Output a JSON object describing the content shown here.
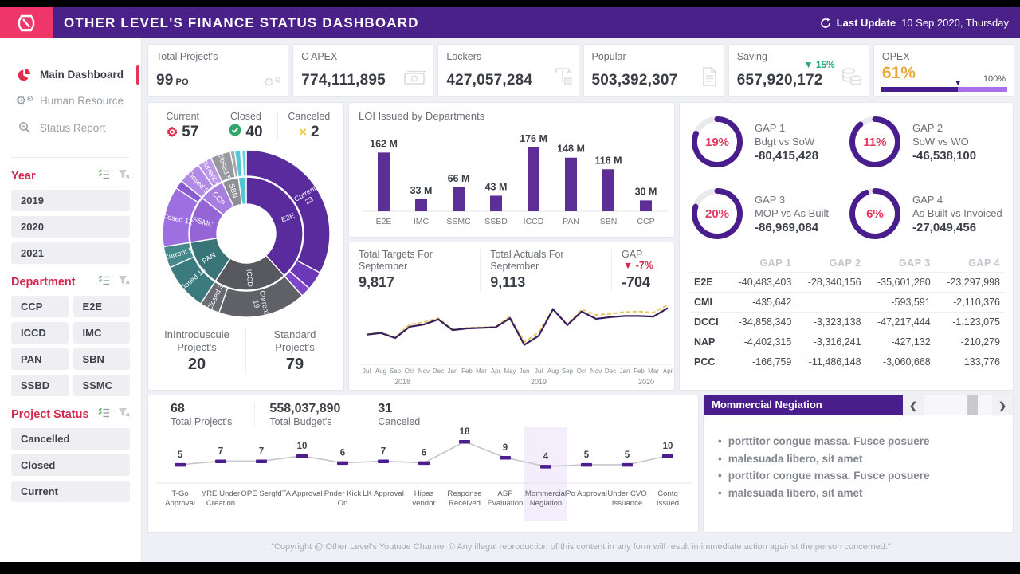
{
  "colors": {
    "header_purple": "#4A2089",
    "brand_pink": "#EE3668",
    "accent_red": "#D6294E",
    "bar_purple": "#5C2E96",
    "ring_purple": "#4A1D8C",
    "pct_red": "#E03A5E",
    "green": "#26A87C",
    "gold": "#E9C75B",
    "opex_orange": "#E9A83C",
    "actuals_purple": "#38205E"
  },
  "topbar": {
    "title": "OTHER LEVEL'S FINANCE STATUS DASHBOARD",
    "last_update_label": "Last Update",
    "last_update_value": "10 Sep 2020, Thursday"
  },
  "sidebar": {
    "nav": [
      {
        "label": "Main Dashboard",
        "icon": "pie-chart-icon",
        "active": true
      },
      {
        "label": "Human Resource",
        "icon": "gears-icon",
        "active": false
      },
      {
        "label": "Status Report",
        "icon": "search-report-icon",
        "active": false
      }
    ],
    "slicers": [
      {
        "title": "Year",
        "layout": "rows",
        "items": [
          "2019",
          "2020",
          "2021"
        ]
      },
      {
        "title": "Department",
        "layout": "grid",
        "items": [
          "CCP",
          "E2E",
          "ICCD",
          "IMC",
          "PAN",
          "SBN",
          "SSBD",
          "SSMC"
        ]
      },
      {
        "title": "Project Status",
        "layout": "rows",
        "items": [
          "Cancelled",
          "Closed",
          "Current"
        ]
      }
    ]
  },
  "kpis": [
    {
      "title": "Total Project's",
      "value": "99",
      "suffix": "PO",
      "icon": "gears-icon"
    },
    {
      "title": "C APEX",
      "value": "774,111,895",
      "icon": "banknote-icon"
    },
    {
      "title": "Lockers",
      "value": "427,057,284",
      "icon": "crane-icon"
    },
    {
      "title": "Popular",
      "value": "503,392,307",
      "icon": "document-icon"
    },
    {
      "title": "Saving",
      "value": "657,920,172",
      "delta": "▼ 15%",
      "icon": "coins-icon"
    },
    {
      "title": "OPEX",
      "type": "progress",
      "value": "61%",
      "pct": 61,
      "max_label": "100%"
    }
  ],
  "status_summary": [
    {
      "label": "Current",
      "value": "57",
      "icon": "gear-icon",
      "color": "#E0314B"
    },
    {
      "label": "Closed",
      "value": "40",
      "icon": "check-circle-icon",
      "color": "#2FA66A"
    },
    {
      "label": "Canceled",
      "value": "2",
      "icon": "x-icon",
      "color": "#EFC93C"
    }
  ],
  "type_totals": [
    {
      "label": "InIntroduscuie Project's",
      "value": "20"
    },
    {
      "label": "Standard Project's",
      "value": "79"
    }
  ],
  "charts": {
    "sunburst": {
      "inner": [
        {
          "lines": [
            "E2E"
          ],
          "start": 0,
          "end": 138,
          "color": "#5A2B9D"
        },
        {
          "lines": [
            "ICCD"
          ],
          "start": 138,
          "end": 213,
          "color": "#57595F"
        },
        {
          "lines": [
            "PAN"
          ],
          "start": 213,
          "end": 261,
          "color": "#397578"
        },
        {
          "lines": [
            "SSMC"
          ],
          "start": 261,
          "end": 309,
          "color": "#9565D6"
        },
        {
          "lines": [
            "CCP"
          ],
          "start": 309,
          "end": 335,
          "color": "#A87FE0"
        },
        {
          "lines": [
            "SBN"
          ],
          "start": 335,
          "end": 352,
          "color": "#8D8F94"
        },
        {
          "lines": [],
          "start": 352,
          "end": 360,
          "color": "#54C6D8"
        }
      ],
      "outer": [
        {
          "lines": [
            "Current",
            "23"
          ],
          "start": 0,
          "end": 118,
          "color": "#5A2B9D"
        },
        {
          "lines": [],
          "start": 118,
          "end": 131,
          "color": "#6C38B8"
        },
        {
          "lines": [],
          "start": 131,
          "end": 138,
          "color": "#7E47C9"
        },
        {
          "lines": [
            "Current",
            "19"
          ],
          "start": 138,
          "end": 199,
          "color": "#5F6167"
        },
        {
          "lines": [
            "Closed 3"
          ],
          "start": 199,
          "end": 213,
          "color": "#6A6C72"
        },
        {
          "lines": [
            "Closed 10"
          ],
          "start": 213,
          "end": 246,
          "color": "#3B7A7E"
        },
        {
          "lines": [
            "Current 5"
          ],
          "start": 246,
          "end": 261,
          "color": "#46898D"
        },
        {
          "lines": [
            "Closed 12"
          ],
          "start": 261,
          "end": 303,
          "color": "#9D6FE0"
        },
        {
          "lines": [],
          "start": 303,
          "end": 309,
          "color": "#8A5BD0"
        },
        {
          "lines": [
            "Closed 5"
          ],
          "start": 309,
          "end": 325,
          "color": "#B18AE6"
        },
        {
          "lines": [
            "Current 4"
          ],
          "start": 325,
          "end": 335,
          "color": "#BD99EC"
        },
        {
          "lines": [
            "Closed 5"
          ],
          "start": 335,
          "end": 349,
          "color": "#97999E"
        },
        {
          "lines": [],
          "start": 349,
          "end": 352,
          "color": "#A6A8AD"
        },
        {
          "lines": [],
          "start": 352,
          "end": 356,
          "color": "#54C6D8"
        },
        {
          "lines": [],
          "start": 357,
          "end": 360,
          "color": "#6BD2E0"
        }
      ]
    },
    "loi": {
      "type": "bar",
      "title": "LOI Issued by Departments",
      "categories": [
        "E2E",
        "IMC",
        "SSMC",
        "SSBD",
        "ICCD",
        "PAN",
        "SBN",
        "CCP"
      ],
      "values": [
        162,
        33,
        66,
        43,
        176,
        148,
        116,
        30
      ],
      "unit": "M",
      "bar_color": "#5C2E96"
    },
    "targets": {
      "type": "line",
      "x": [
        "Jul",
        "Aug",
        "Sep",
        "Oct",
        "Nov",
        "Dec",
        "Jan",
        "Feb",
        "Mar",
        "Apr",
        "May",
        "Jun",
        "Jul",
        "Aug",
        "Sep",
        "Oct",
        "Nov",
        "Dec",
        "Jan",
        "Feb",
        "Mar",
        "Apr"
      ],
      "year_labels": [
        {
          "label": "2018",
          "index": 2.5
        },
        {
          "label": "2019",
          "index": 12
        },
        {
          "label": "2020",
          "index": 19.5
        }
      ],
      "ylim": [
        0,
        110
      ],
      "series": [
        {
          "name": "Targets",
          "style": "dashed",
          "color": "#E9C75B",
          "values": [
            45,
            48,
            39,
            62,
            66,
            73,
            53,
            56,
            57,
            58,
            76,
            31,
            48,
            89,
            62,
            89,
            79,
            81,
            84,
            85,
            83,
            97
          ]
        },
        {
          "name": "Actuals",
          "style": "solid",
          "color": "#38205E",
          "values": [
            44,
            47,
            38,
            58,
            62,
            71,
            52,
            55,
            56,
            57,
            73,
            26,
            42,
            89,
            61,
            85,
            72,
            75,
            77,
            77,
            76,
            91
          ]
        }
      ]
    },
    "stages": {
      "type": "line",
      "values": [
        5,
        7,
        7,
        10,
        6,
        7,
        6,
        18,
        9,
        4,
        5,
        5,
        10
      ],
      "labels": [
        [
          "T-Go",
          "Approval"
        ],
        [
          "YRE Under",
          "Creation"
        ],
        [
          "OPE Sergfd"
        ],
        [
          "TA Approval"
        ],
        [
          "Pnder Kick",
          "On"
        ],
        [
          "LK Approval"
        ],
        [
          "Hipas",
          "vendor"
        ],
        [
          "Response",
          "Received"
        ],
        [
          "ASP",
          "Evaluation"
        ],
        [
          "Mommercial",
          "Negiation"
        ],
        [
          "Po Approval"
        ],
        [
          "Under CVO",
          "Issuance"
        ],
        [
          "Contq",
          "Issued"
        ]
      ],
      "highlight_index": 9,
      "line_color": "#C4C6CB",
      "marker_color": "#4B1D8F"
    }
  },
  "targets_header": [
    {
      "label": "Total Targets For September",
      "value": "9,817"
    },
    {
      "label": "Total Actuals For September",
      "value": "9,113"
    },
    {
      "label": "GAP",
      "value": "-704",
      "delta": "▼ -7%"
    }
  ],
  "gaps": [
    {
      "name": "GAP 1",
      "pct": "19%",
      "pct_num": 19,
      "label": "Bdgt vs SoW",
      "value": "-80,415,428"
    },
    {
      "name": "GAP 2",
      "pct": "11%",
      "pct_num": 11,
      "label": "SoW vs WO",
      "value": "-46,538,100"
    },
    {
      "name": "GAP 3",
      "pct": "20%",
      "pct_num": 20,
      "label": "MOP vs As Built",
      "value": "-86,969,084"
    },
    {
      "name": "GAP 4",
      "pct": "6%",
      "pct_num": 6,
      "label": "As Built vs Invoiced",
      "value": "-27,049,456"
    }
  ],
  "gap_table": {
    "headers": [
      "",
      "GAP 1",
      "GAP 2",
      "GAP 3",
      "GAP 4"
    ],
    "rows": [
      {
        "dept": "E2E",
        "values": [
          "-40,483,403",
          "-28,340,156",
          "-35,601,280",
          "-23,297,998"
        ]
      },
      {
        "dept": "CMI",
        "values": [
          "-435,642",
          "",
          "-593,591",
          "-2,110,376"
        ]
      },
      {
        "dept": "DCCI",
        "values": [
          "-34,858,340",
          "-3,323,138",
          "-47,217,444",
          "-1,123,075"
        ]
      },
      {
        "dept": "NAP",
        "values": [
          "-4,402,315",
          "-3,316,241",
          "-427,132",
          "-210,279"
        ]
      },
      {
        "dept": "PCC",
        "values": [
          "-166,759",
          "-11,486,148",
          "-3,060,668",
          "133,776"
        ]
      }
    ]
  },
  "bottom_stats": [
    {
      "value": "68",
      "label": "Total Project's"
    },
    {
      "value": "558,037,890",
      "label": "Total Budget's"
    },
    {
      "value": "31",
      "label": "Canceled"
    }
  ],
  "negotiation": {
    "title": "Mommercial Negiation",
    "bullets": [
      "porttitor congue massa. Fusce posuere",
      "malesuada libero, sit amet",
      "porttitor congue massa. Fusce posuere",
      "malesuada libero, sit amet"
    ]
  },
  "footer": {
    "copyright": "\"Copyright @ Other Level's Youtube Channel © Any illegal reproduction of this content in any form will result in immediate action against the person concerned.\""
  }
}
